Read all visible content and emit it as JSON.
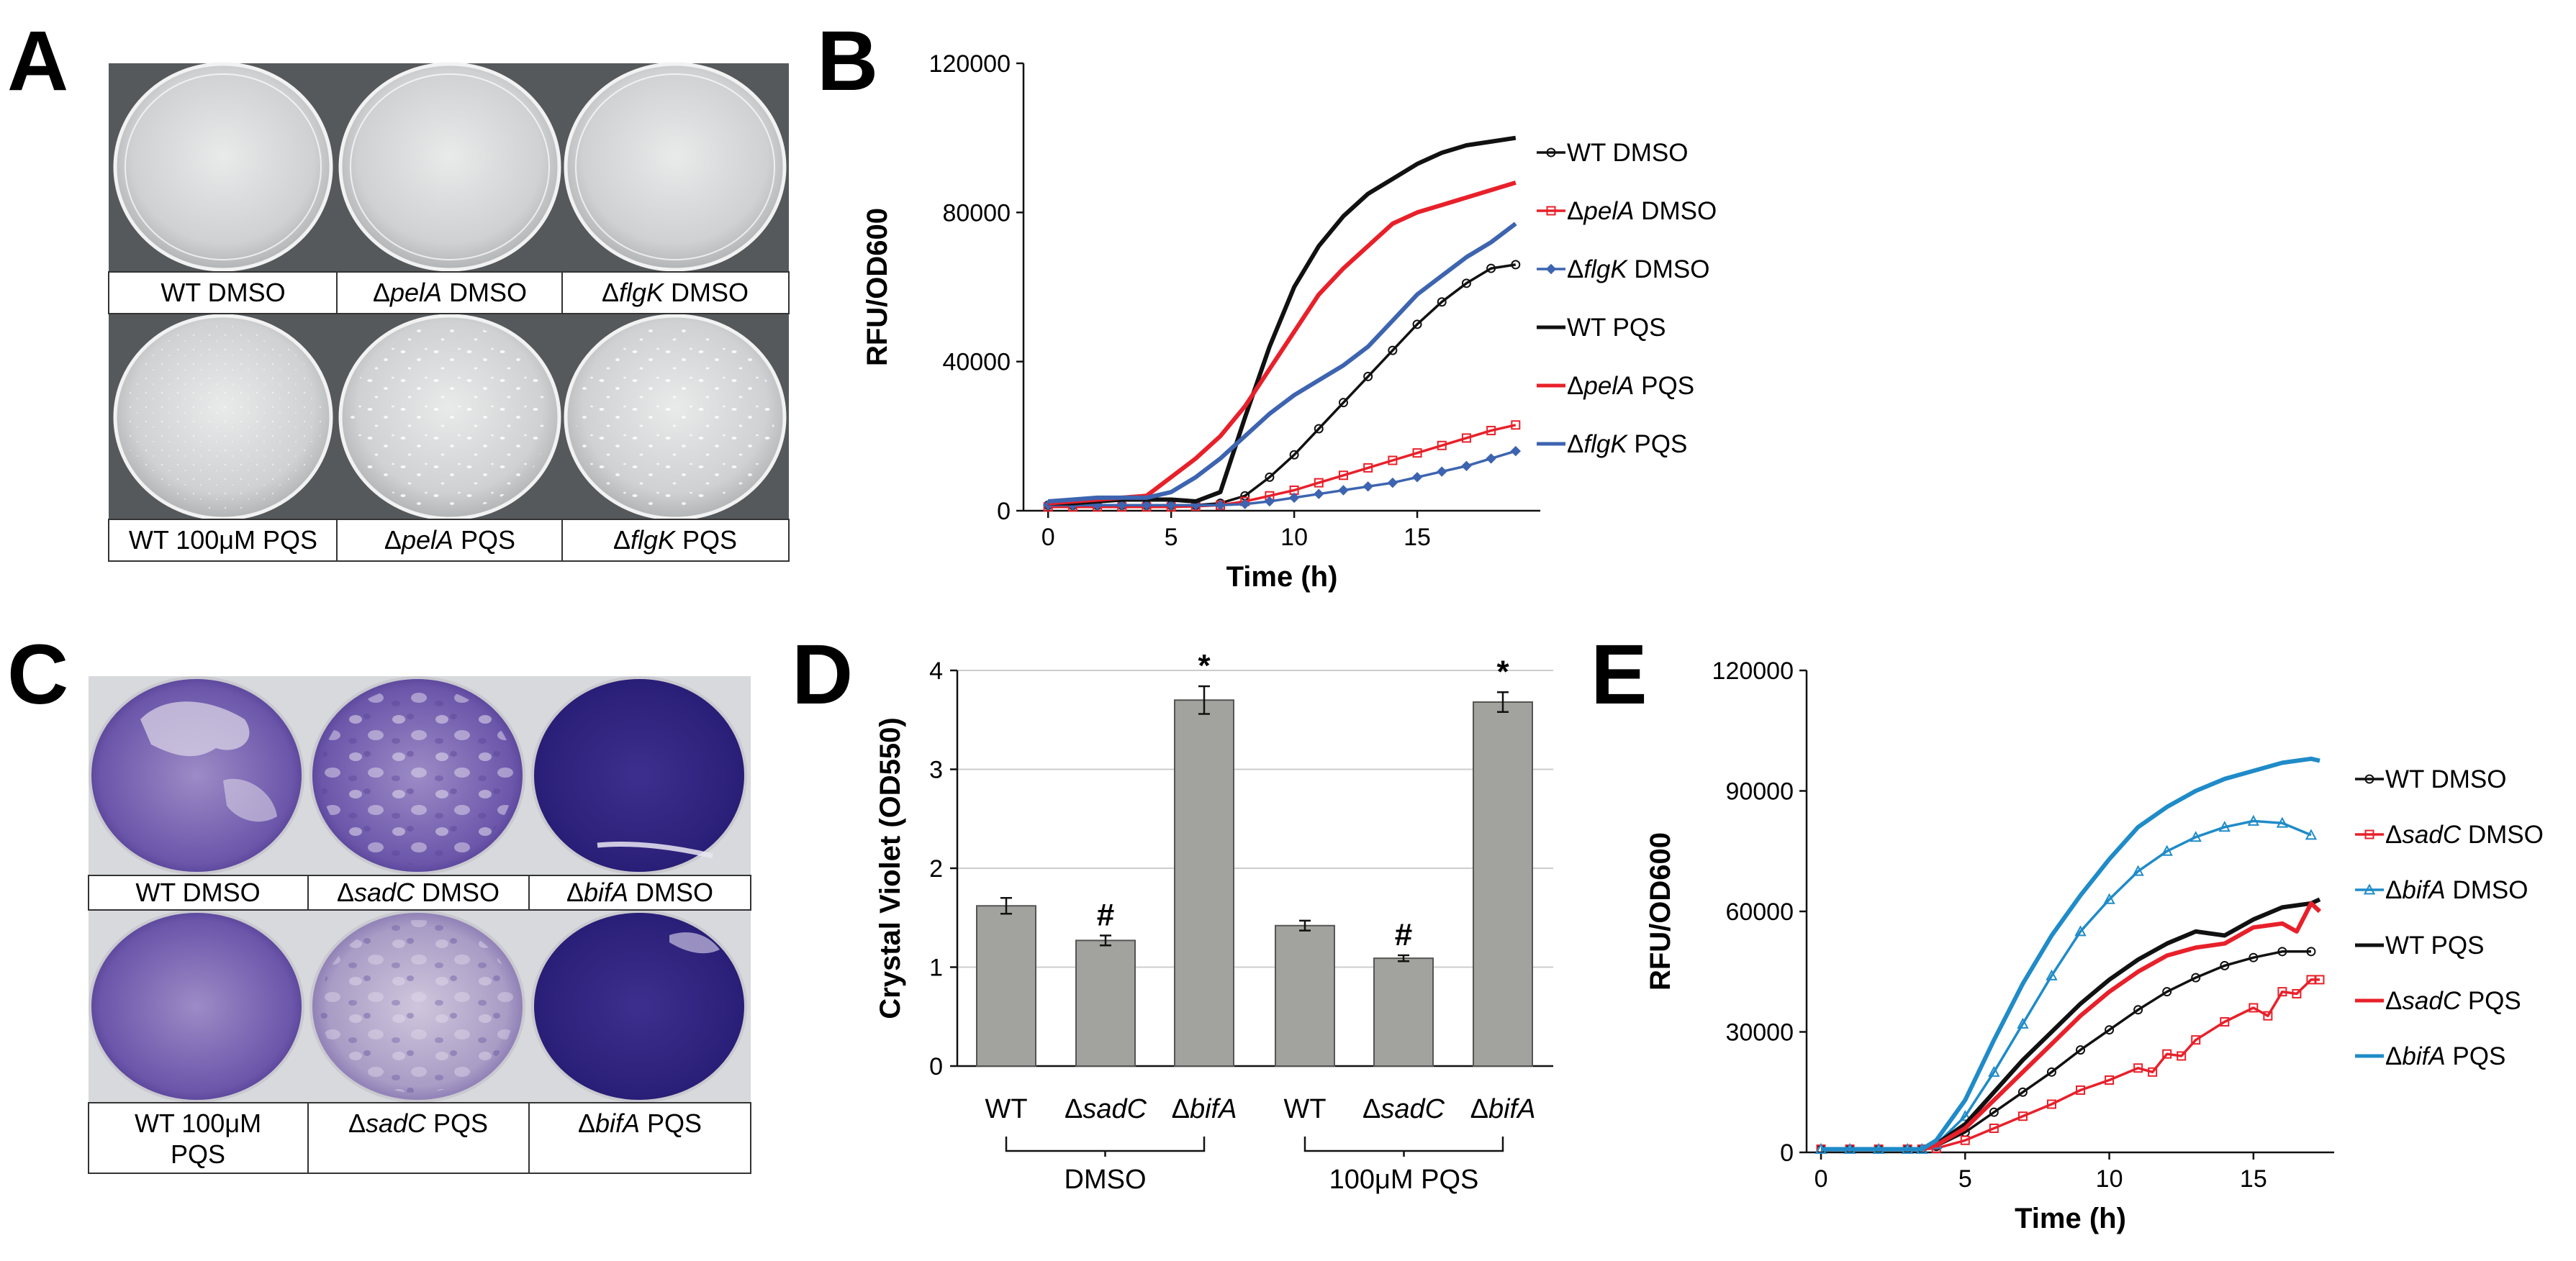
{
  "panels": {
    "a": "A",
    "b": "B",
    "c": "C",
    "d": "D",
    "e": "E"
  },
  "colors": {
    "black": "#111111",
    "red": "#e8202a",
    "blue": "#3d64b0",
    "teal": "#1f8bc8",
    "bar": "#a2a39e"
  },
  "plateA": {
    "labels_top": [
      {
        "pre": "WT DMSO",
        "ital": "",
        "post": ""
      },
      {
        "pre": "Δ",
        "ital": "pelA",
        "post": " DMSO"
      },
      {
        "pre": "Δ",
        "ital": "flgK",
        "post": " DMSO"
      }
    ],
    "labels_bottom": [
      {
        "pre": "WT 100μM PQS",
        "ital": "",
        "post": ""
      },
      {
        "pre": "Δ",
        "ital": "pelA",
        "post": " PQS"
      },
      {
        "pre": "Δ",
        "ital": "flgK",
        "post": " PQS"
      }
    ]
  },
  "plateC": {
    "labels_top": [
      {
        "pre": "WT DMSO",
        "ital": "",
        "post": ""
      },
      {
        "pre": "Δ",
        "ital": "sadC",
        "post": " DMSO"
      },
      {
        "pre": "Δ",
        "ital": "bifA",
        "post": " DMSO"
      }
    ],
    "labels_bottom": [
      {
        "pre": "WT 100μM",
        "ital": "",
        "post": "",
        "line2": "PQS"
      },
      {
        "pre": "Δ",
        "ital": "sadC",
        "post": " PQS"
      },
      {
        "pre": "Δ",
        "ital": "bifA",
        "post": " PQS"
      }
    ]
  },
  "chart_data": [
    {
      "id": "B",
      "type": "line",
      "xlabel": "Time (h)",
      "ylabel": "RFU/OD600",
      "xlim": [
        -1,
        20
      ],
      "ylim": [
        0,
        120000
      ],
      "xticks": [
        0,
        5,
        10,
        15
      ],
      "yticks": [
        0,
        40000,
        80000,
        120000
      ],
      "legend_position": "right",
      "series": [
        {
          "name": "WT DMSO",
          "pre": "WT DMSO",
          "ital": "",
          "post": "",
          "color": "black",
          "marker": "circle",
          "x": [
            0,
            1,
            2,
            3,
            4,
            5,
            6,
            7,
            8,
            9,
            10,
            11,
            12,
            13,
            14,
            15,
            16,
            17,
            18,
            19
          ],
          "y": [
            1500,
            1500,
            1500,
            1500,
            1500,
            1500,
            1500,
            2000,
            4000,
            9000,
            15000,
            22000,
            29000,
            36000,
            43000,
            50000,
            56000,
            61000,
            65000,
            66000
          ]
        },
        {
          "name": "ΔpelA DMSO",
          "pre": "Δ",
          "ital": "pelA",
          "post": " DMSO",
          "color": "red",
          "marker": "square",
          "x": [
            0,
            1,
            2,
            3,
            4,
            5,
            6,
            7,
            8,
            9,
            10,
            11,
            12,
            13,
            14,
            15,
            16,
            17,
            18,
            19
          ],
          "y": [
            1000,
            1000,
            1000,
            1000,
            1000,
            1000,
            1200,
            1500,
            2500,
            4000,
            5500,
            7500,
            9500,
            11500,
            13500,
            15500,
            17500,
            19500,
            21500,
            23000
          ]
        },
        {
          "name": "ΔflgK DMSO",
          "pre": "Δ",
          "ital": "flgK",
          "post": " DMSO",
          "color": "blue",
          "marker": "diamond",
          "x": [
            0,
            1,
            2,
            3,
            4,
            5,
            6,
            7,
            8,
            9,
            10,
            11,
            12,
            13,
            14,
            15,
            16,
            17,
            18,
            19
          ],
          "y": [
            1500,
            1500,
            1500,
            1500,
            1500,
            1500,
            1500,
            1500,
            1800,
            2500,
            3500,
            4500,
            5500,
            6500,
            7500,
            9000,
            10500,
            12000,
            14000,
            16000
          ]
        },
        {
          "name": "WT PQS",
          "pre": "WT PQS",
          "ital": "",
          "post": "",
          "color": "black",
          "marker": "none",
          "x": [
            0,
            1,
            2,
            3,
            4,
            5,
            6,
            7,
            8,
            9,
            10,
            11,
            12,
            13,
            14,
            15,
            16,
            17,
            18,
            19
          ],
          "y": [
            2000,
            2000,
            2500,
            3000,
            3000,
            3000,
            2500,
            5000,
            25000,
            44000,
            60000,
            71000,
            79000,
            85000,
            89000,
            93000,
            96000,
            98000,
            99000,
            100000
          ]
        },
        {
          "name": "ΔpelA PQS",
          "pre": "Δ",
          "ital": "pelA",
          "post": " PQS",
          "color": "red",
          "marker": "none",
          "x": [
            0,
            1,
            2,
            3,
            4,
            5,
            6,
            7,
            8,
            9,
            10,
            11,
            12,
            13,
            14,
            15,
            16,
            17,
            18,
            19
          ],
          "y": [
            2000,
            2500,
            3000,
            3500,
            4000,
            9000,
            14000,
            20000,
            28000,
            38000,
            48000,
            58000,
            65000,
            71000,
            77000,
            80000,
            82000,
            84000,
            86000,
            88000
          ]
        },
        {
          "name": "ΔflgK PQS",
          "pre": "Δ",
          "ital": "flgK",
          "post": " PQS",
          "color": "blue",
          "marker": "none",
          "x": [
            0,
            1,
            2,
            3,
            4,
            5,
            6,
            7,
            8,
            9,
            10,
            11,
            12,
            13,
            14,
            15,
            16,
            17,
            18,
            19
          ],
          "y": [
            2500,
            3000,
            3500,
            3500,
            3500,
            5000,
            9000,
            14000,
            20000,
            26000,
            31000,
            35000,
            39000,
            44000,
            51000,
            58000,
            63000,
            68000,
            72000,
            77000
          ]
        }
      ]
    },
    {
      "id": "D",
      "type": "bar",
      "ylabel": "Crystal Violet (OD550)",
      "ylim": [
        0,
        4
      ],
      "yticks": [
        0,
        1,
        2,
        3,
        4
      ],
      "categories": [
        {
          "pre": "WT",
          "ital": "",
          "group": "DMSO"
        },
        {
          "pre": "Δ",
          "ital": "sadC",
          "group": "DMSO"
        },
        {
          "pre": "Δ",
          "ital": "bifA",
          "group": "DMSO"
        },
        {
          "pre": "WT",
          "ital": "",
          "group": "100μM PQS"
        },
        {
          "pre": "Δ",
          "ital": "sadC",
          "group": "100μM PQS"
        },
        {
          "pre": "Δ",
          "ital": "bifA",
          "group": "100μM PQS"
        }
      ],
      "values": [
        1.62,
        1.27,
        3.7,
        1.42,
        1.09,
        3.68
      ],
      "errors": [
        0.08,
        0.05,
        0.14,
        0.05,
        0.03,
        0.1
      ],
      "annotations": [
        "",
        "#",
        "*",
        "",
        "#",
        "*"
      ],
      "groups": [
        "DMSO",
        "100μM PQS"
      ]
    },
    {
      "id": "E",
      "type": "line",
      "xlabel": "Time (h)",
      "ylabel": "RFU/OD600",
      "xlim": [
        -0.5,
        17.8
      ],
      "ylim": [
        0,
        120000
      ],
      "xticks": [
        0,
        5,
        10,
        15
      ],
      "yticks": [
        0,
        30000,
        60000,
        90000,
        120000
      ],
      "legend_position": "right",
      "series": [
        {
          "name": "WT DMSO",
          "pre": "WT DMSO",
          "ital": "",
          "post": "",
          "color": "black",
          "marker": "circle",
          "x": [
            0,
            1,
            2,
            3,
            3.5,
            4,
            5,
            6,
            7,
            8,
            9,
            10,
            11,
            12,
            13,
            14,
            15,
            16,
            17
          ],
          "y": [
            800,
            800,
            800,
            800,
            800,
            1500,
            5000,
            10000,
            15000,
            20000,
            25500,
            30500,
            35500,
            40000,
            43500,
            46500,
            48500,
            50000,
            50000
          ]
        },
        {
          "name": "ΔsadC DMSO",
          "pre": "Δ",
          "ital": "sadC",
          "post": " DMSO",
          "color": "red",
          "marker": "square",
          "x": [
            0,
            1,
            2,
            3,
            3.5,
            4,
            5,
            6,
            7,
            8,
            9,
            10,
            11,
            11.5,
            12,
            12.5,
            13,
            14,
            15,
            15.5,
            16,
            16.5,
            17,
            17.3
          ],
          "y": [
            800,
            800,
            800,
            800,
            800,
            1000,
            3000,
            6000,
            9000,
            12000,
            15500,
            18000,
            21000,
            20000,
            24500,
            24000,
            28000,
            32500,
            36000,
            34000,
            40000,
            39500,
            43000,
            43000
          ]
        },
        {
          "name": "ΔbifA DMSO",
          "pre": "Δ",
          "ital": "bifA",
          "post": " DMSO",
          "color": "teal",
          "marker": "triangle",
          "x": [
            0,
            1,
            2,
            3,
            3.5,
            4,
            5,
            6,
            7,
            8,
            9,
            10,
            11,
            12,
            13,
            14,
            15,
            16,
            17
          ],
          "y": [
            800,
            800,
            800,
            800,
            800,
            2000,
            9000,
            20000,
            32000,
            44000,
            55000,
            63000,
            70000,
            75000,
            78500,
            81000,
            82500,
            82000,
            79000
          ]
        },
        {
          "name": "WT PQS",
          "pre": "WT PQS",
          "ital": "",
          "post": "",
          "color": "black",
          "marker": "none",
          "x": [
            0,
            1,
            2,
            3,
            3.5,
            4,
            5,
            6,
            7,
            8,
            9,
            10,
            11,
            12,
            13,
            14,
            15,
            16,
            17,
            17.3
          ],
          "y": [
            800,
            800,
            800,
            800,
            800,
            2000,
            7000,
            15000,
            23000,
            30000,
            37000,
            43000,
            48000,
            52000,
            55000,
            54000,
            58000,
            61000,
            62000,
            63000
          ]
        },
        {
          "name": "ΔsadC PQS",
          "pre": "Δ",
          "ital": "sadC",
          "post": " PQS",
          "color": "red",
          "marker": "none",
          "x": [
            0,
            1,
            2,
            3,
            3.5,
            4,
            5,
            6,
            7,
            8,
            9,
            10,
            11,
            12,
            13,
            14,
            15,
            16,
            16.5,
            17,
            17.3
          ],
          "y": [
            800,
            800,
            800,
            800,
            800,
            1800,
            6000,
            13000,
            20000,
            27000,
            34000,
            40000,
            45000,
            49000,
            51000,
            52000,
            56000,
            57000,
            55000,
            62000,
            60000
          ]
        },
        {
          "name": "ΔbifA PQS",
          "pre": "Δ",
          "ital": "bifA",
          "post": " PQS",
          "color": "teal",
          "marker": "none",
          "x": [
            0,
            1,
            2,
            3,
            3.5,
            4,
            5,
            6,
            7,
            8,
            9,
            10,
            11,
            12,
            13,
            14,
            15,
            16,
            17,
            17.3
          ],
          "y": [
            800,
            800,
            800,
            800,
            800,
            3000,
            13000,
            28000,
            42000,
            54000,
            64000,
            73000,
            81000,
            86000,
            90000,
            93000,
            95000,
            97000,
            98000,
            97500
          ]
        }
      ]
    }
  ]
}
